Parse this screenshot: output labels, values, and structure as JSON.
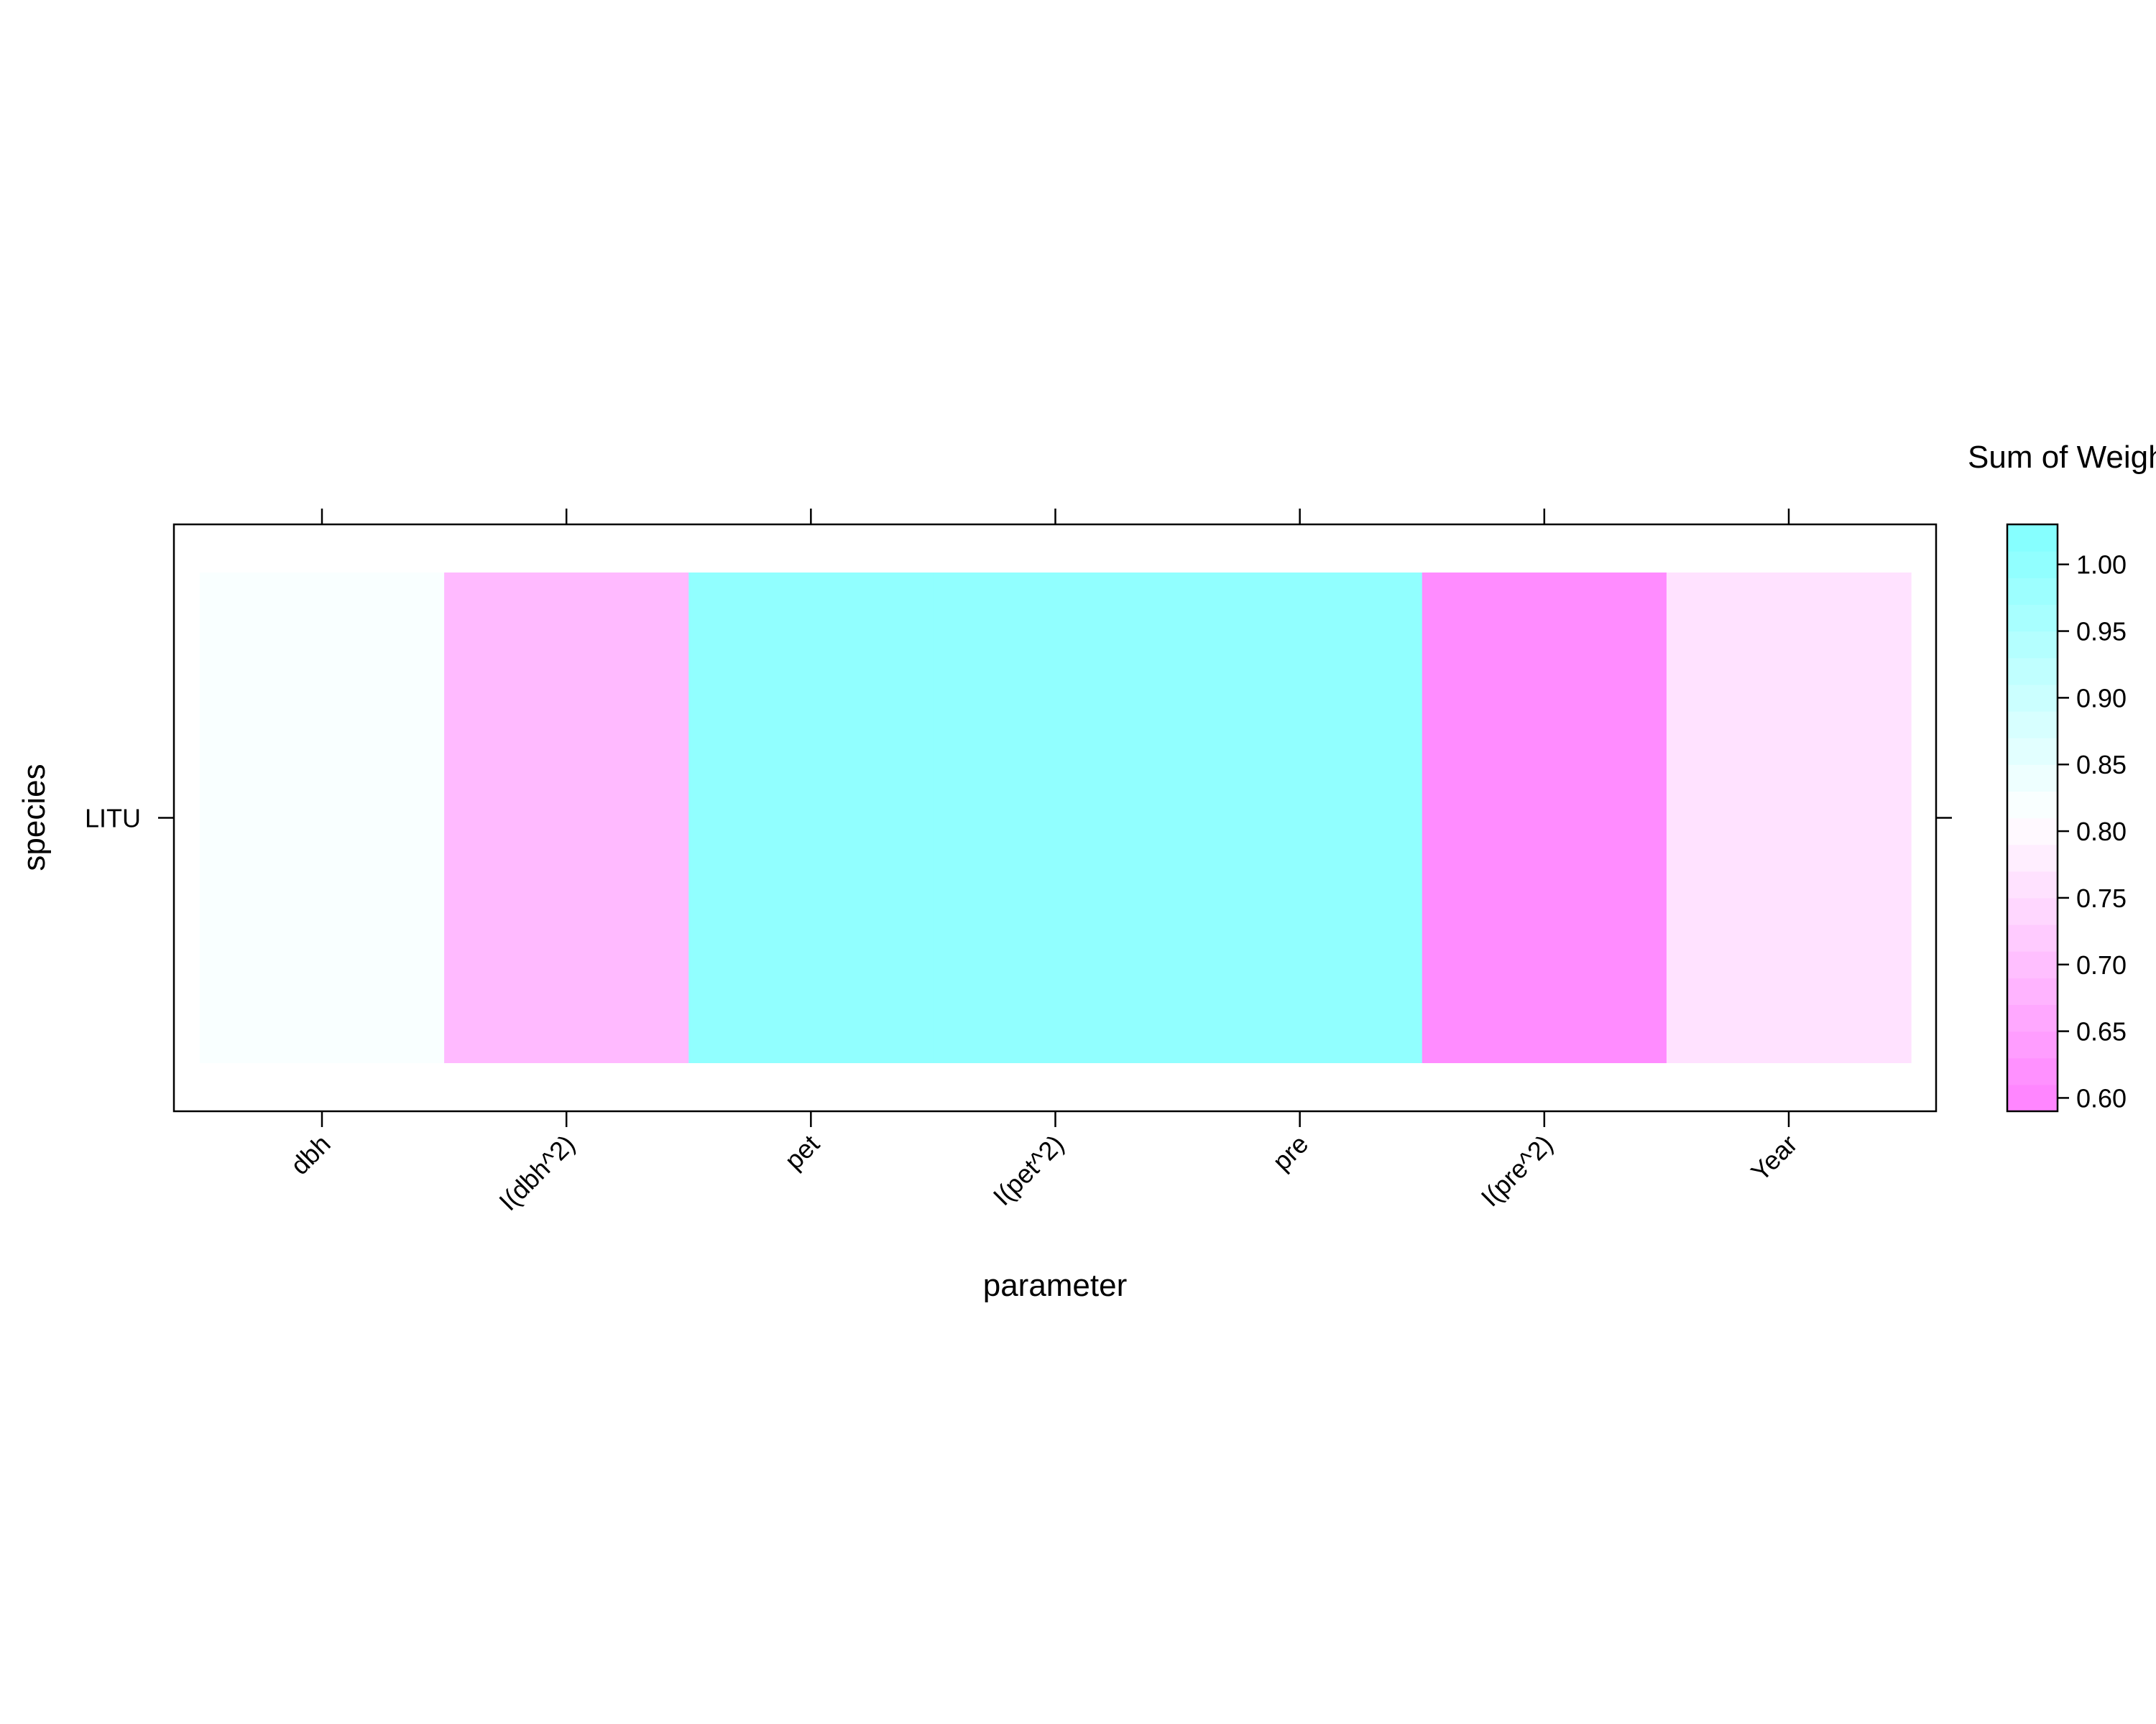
{
  "chart_data": {
    "type": "heatmap",
    "xlabel": "parameter",
    "ylabel": "species",
    "x_categories": [
      "dbh",
      "I(dbh^2)",
      "pet",
      "I(pet^2)",
      "pre",
      "I(pre^2)",
      "Year"
    ],
    "y_categories": [
      "LITU"
    ],
    "values": [
      [
        0.82,
        0.69,
        1.0,
        1.0,
        1.0,
        0.61,
        0.76
      ]
    ],
    "colorbar": {
      "title": "Sum of Weights",
      "range": [
        0.59,
        1.03
      ],
      "ticks": [
        "0.60",
        "0.65",
        "0.70",
        "0.75",
        "0.80",
        "0.85",
        "0.90",
        "0.95",
        "1.00"
      ],
      "low_color": "#ff80ff",
      "mid_color": "#ffffff",
      "high_color": "#80ffff",
      "breakpoint": 0.81
    },
    "grid": false
  }
}
